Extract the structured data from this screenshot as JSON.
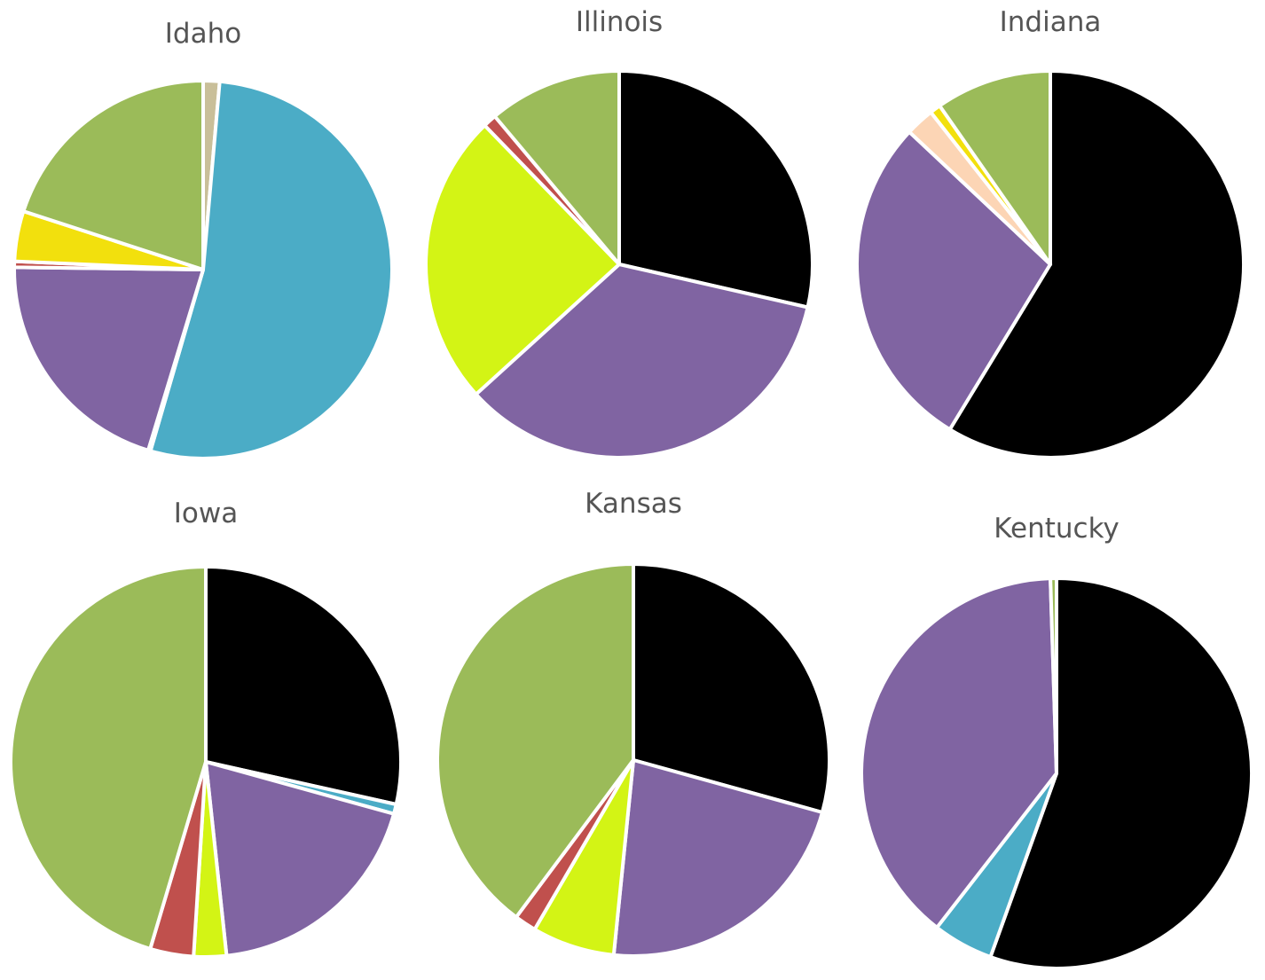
{
  "chart_data": [
    {
      "type": "pie",
      "title": "Idaho",
      "slices": [
        {
          "value": 0.014,
          "color": "#c9bf99"
        },
        {
          "value": 0.531,
          "color": "#4bacc6"
        },
        {
          "value": 0.002,
          "color": "#7f7f7f"
        },
        {
          "value": 0.205,
          "color": "#8064a2"
        },
        {
          "value": 0.005,
          "color": "#c0504d"
        },
        {
          "value": 0.043,
          "color": "#f2e00d"
        },
        {
          "value": 0.2,
          "color": "#9bbb59"
        }
      ]
    },
    {
      "type": "pie",
      "title": "Illinois",
      "slices": [
        {
          "value": 0.28,
          "color": "#000000"
        },
        {
          "value": 0.34,
          "color": "#8064a2"
        },
        {
          "value": 0.24,
          "color": "#d3f415"
        },
        {
          "value": 0.011,
          "color": "#c0504d"
        },
        {
          "value": 0.109,
          "color": "#9bbb59"
        }
      ]
    },
    {
      "type": "pie",
      "title": "Indiana",
      "slices": [
        {
          "value": 0.587,
          "color": "#000000"
        },
        {
          "value": 0.283,
          "color": "#8064a2"
        },
        {
          "value": 0.024,
          "color": "#fcd5b5"
        },
        {
          "value": 0.009,
          "color": "#f2e00d"
        },
        {
          "value": 0.097,
          "color": "#9bbb59"
        }
      ]
    },
    {
      "type": "pie",
      "title": "Iowa",
      "slices": [
        {
          "value": 0.285,
          "color": "#000000"
        },
        {
          "value": 0.008,
          "color": "#4bacc6"
        },
        {
          "value": 0.19,
          "color": "#8064a2"
        },
        {
          "value": 0.027,
          "color": "#d3f415"
        },
        {
          "value": 0.036,
          "color": "#c0504d"
        },
        {
          "value": 0.454,
          "color": "#9bbb59"
        }
      ]
    },
    {
      "type": "pie",
      "title": "Kansas",
      "slices": [
        {
          "value": 0.293,
          "color": "#000000"
        },
        {
          "value": 0.223,
          "color": "#8064a2"
        },
        {
          "value": 0.068,
          "color": "#d3f415"
        },
        {
          "value": 0.018,
          "color": "#c0504d"
        },
        {
          "value": 0.398,
          "color": "#9bbb59"
        }
      ]
    },
    {
      "type": "pie",
      "title": "Kentucky",
      "slices": [
        {
          "value": 0.555,
          "color": "#000000"
        },
        {
          "value": 0.05,
          "color": "#4bacc6"
        },
        {
          "value": 0.39,
          "color": "#8064a2"
        },
        {
          "value": 0.005,
          "color": "#9bbb59"
        }
      ]
    }
  ]
}
